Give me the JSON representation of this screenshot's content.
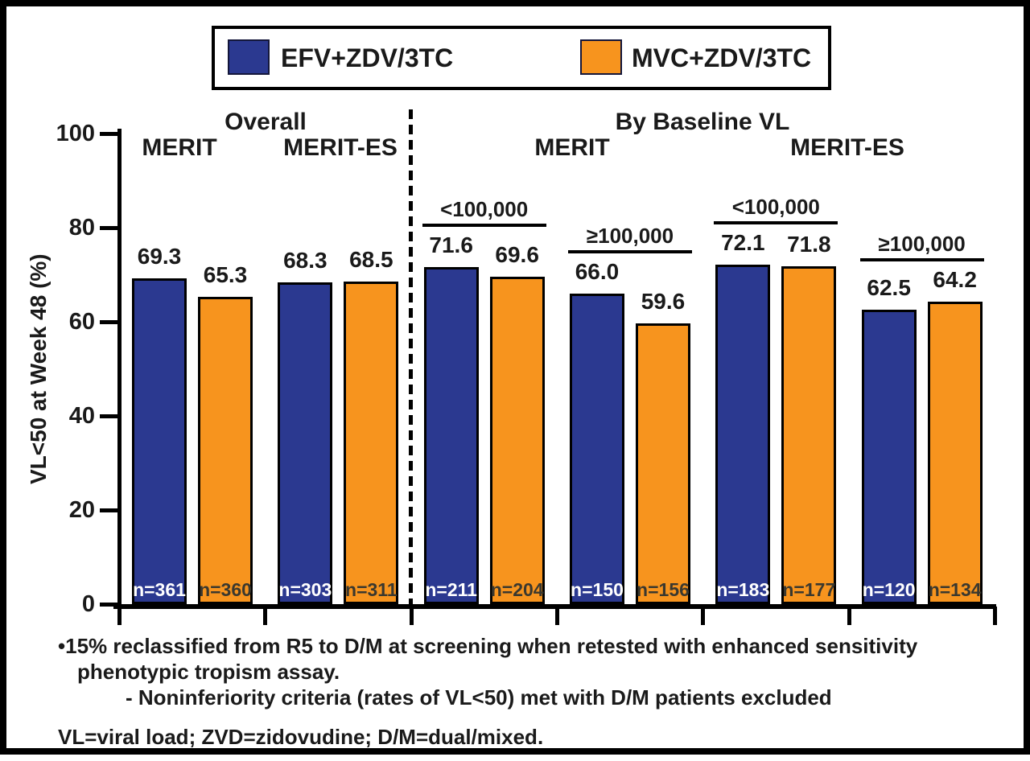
{
  "legend": {
    "items": [
      {
        "label": "EFV+ZDV/3TC",
        "color": "#2b3990"
      },
      {
        "label": "MVC+ZDV/3TC",
        "color": "#f7941e"
      }
    ]
  },
  "headers": {
    "overall": "Overall",
    "by_baseline": "By Baseline VL",
    "overall_merit": "MERIT",
    "overall_merit_es": "MERIT-ES",
    "baseline_merit": "MERIT",
    "baseline_merit_es": "MERIT-ES"
  },
  "y_axis": {
    "title": "VL<50 at Week 48 (%)",
    "ticks": [
      0,
      20,
      40,
      60,
      80,
      100
    ]
  },
  "chart_data": {
    "type": "bar",
    "ylabel": "VL<50 at Week 48 (%)",
    "ylim": [
      0,
      100
    ],
    "grid": false,
    "legend_position": "top",
    "series": [
      "EFV+ZDV/3TC",
      "MVC+ZDV/3TC"
    ],
    "series_colors": [
      "#2b3990",
      "#f7941e"
    ],
    "n_text_colors": [
      "#ffffff",
      "#3a382f"
    ],
    "groups": [
      {
        "panel": "Overall",
        "study": "MERIT",
        "caption": null,
        "values": [
          69.3,
          65.3
        ],
        "value_labels": [
          "69.3",
          "65.3"
        ],
        "n_labels": [
          "n=361",
          "n=360"
        ]
      },
      {
        "panel": "Overall",
        "study": "MERIT-ES",
        "caption": null,
        "values": [
          68.3,
          68.5
        ],
        "value_labels": [
          "68.3",
          "68.5"
        ],
        "n_labels": [
          "n=303",
          "n=311"
        ]
      },
      {
        "panel": "By Baseline VL",
        "study": "MERIT",
        "caption": "<100,000",
        "values": [
          71.6,
          69.6
        ],
        "value_labels": [
          "71.6",
          "69.6"
        ],
        "n_labels": [
          "n=211",
          "n=204"
        ]
      },
      {
        "panel": "By Baseline VL",
        "study": "MERIT",
        "caption": "≥100,000",
        "values": [
          66.0,
          59.6
        ],
        "value_labels": [
          "66.0",
          "59.6"
        ],
        "n_labels": [
          "n=150",
          "n=156"
        ]
      },
      {
        "panel": "By Baseline VL",
        "study": "MERIT-ES",
        "caption": "<100,000",
        "values": [
          72.1,
          71.8
        ],
        "value_labels": [
          "72.1",
          "71.8"
        ],
        "n_labels": [
          "n=183",
          "n=177"
        ]
      },
      {
        "panel": "By Baseline VL",
        "study": "MERIT-ES",
        "caption": "≥100,000",
        "values": [
          62.5,
          64.2
        ],
        "value_labels": [
          "62.5",
          "64.2"
        ],
        "n_labels": [
          "n=120",
          "n=134"
        ]
      }
    ]
  },
  "footnotes": {
    "bullet": "•15% reclassified from R5 to D/M at screening when retested with enhanced sensitivity",
    "bullet_cont": "phenotypic tropism assay.",
    "sub": "- Noninferiority criteria (rates of VL<50) met with D/M patients excluded",
    "abbreviations": "VL=viral load; ZVD=zidovudine; D/M=dual/mixed."
  }
}
